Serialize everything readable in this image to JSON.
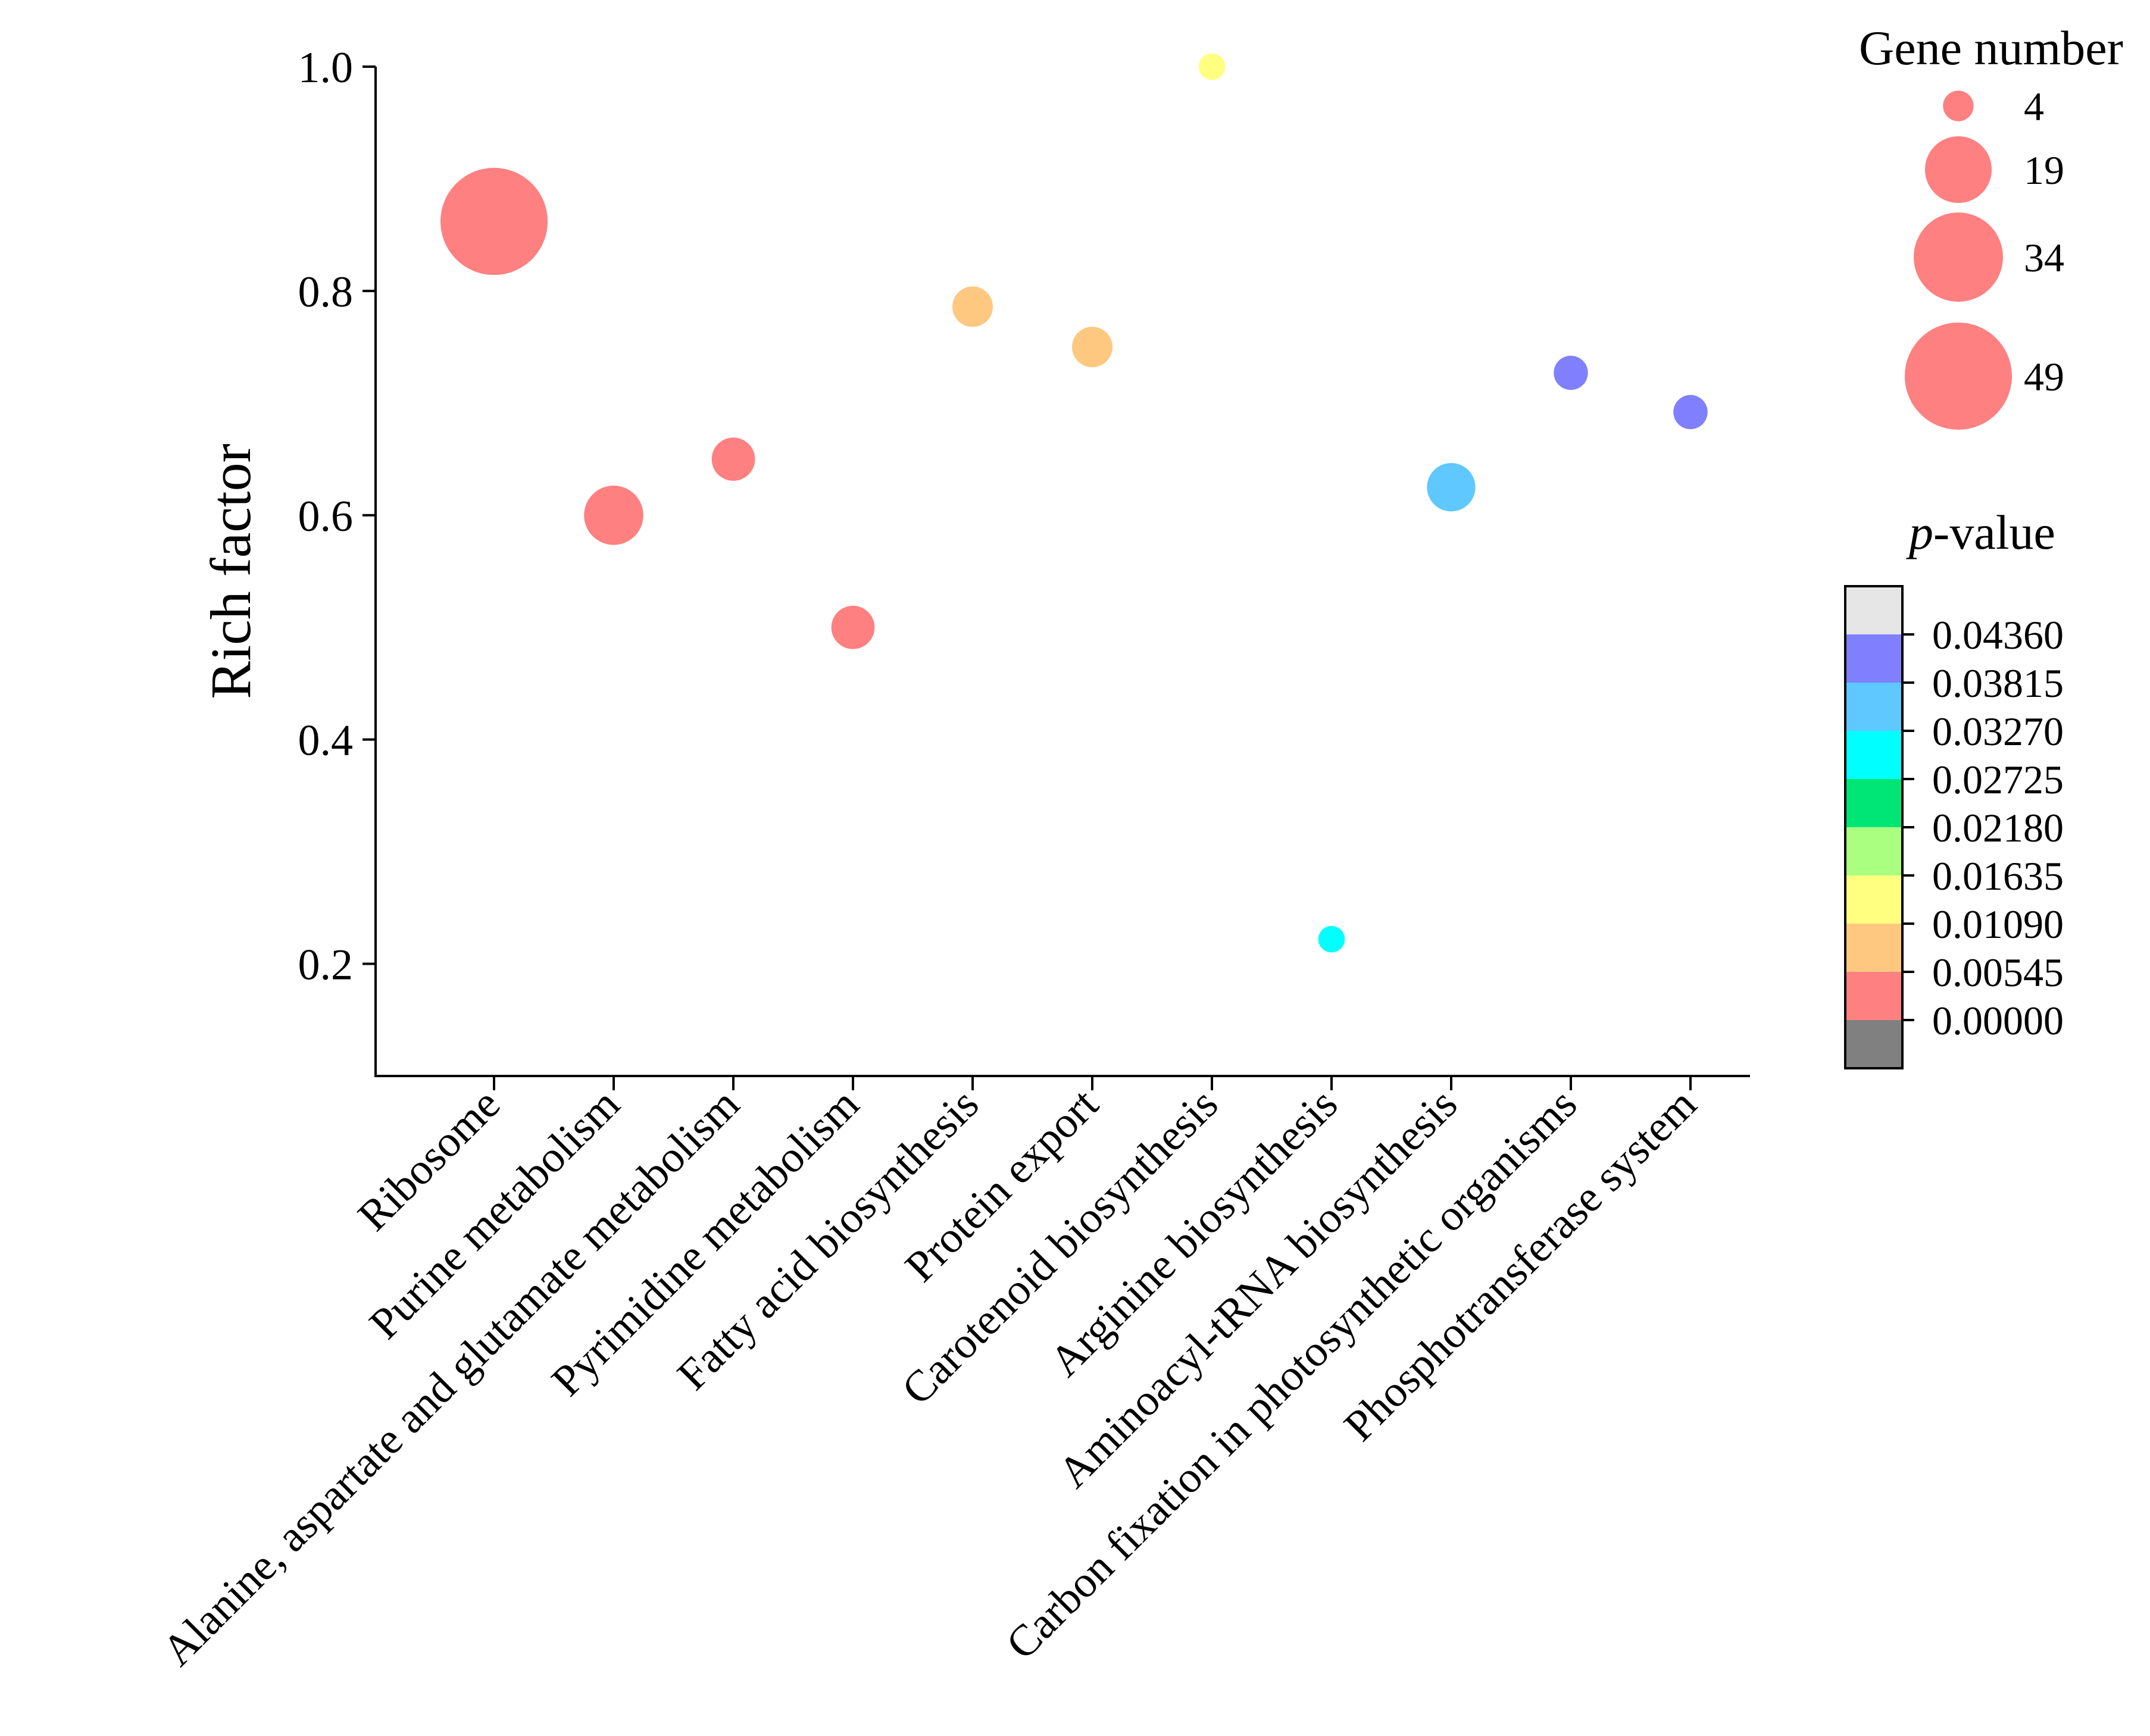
{
  "chart_data": {
    "type": "scatter",
    "title": "",
    "xlabel": "",
    "ylabel": "Rich factor",
    "ylim": [
      0.1,
      1.0
    ],
    "yticks": [
      0.2,
      0.4,
      0.6,
      0.8,
      1.0
    ],
    "yticks_text": [
      "0.2",
      "0.4",
      "0.6",
      "0.8",
      "1.0"
    ],
    "categories": [
      "Ribosome",
      "Purine metabolism",
      "Alanine, aspartate and glutamate metabolism",
      "Pyrimidine metabolism",
      "Fatty acid biosynthesis",
      "Protein export",
      "Carotenoid biosynthesis",
      "Arginine biosynthesis",
      "Aminoacyl-tRNA biosynthesis",
      "Carbon fixation in photosynthetic organisms",
      "Phosphotransferase system"
    ],
    "points": [
      {
        "category": "Ribosome",
        "rich_factor": 0.862,
        "gene_number": 49,
        "p_value": 0.002
      },
      {
        "category": "Purine metabolism",
        "rich_factor": 0.6,
        "gene_number": 15,
        "p_value": 0.003
      },
      {
        "category": "Alanine, aspartate and glutamate metabolism",
        "rich_factor": 0.65,
        "gene_number": 8,
        "p_value": 0.004
      },
      {
        "category": "Pyrimidine metabolism",
        "rich_factor": 0.5,
        "gene_number": 8,
        "p_value": 0.004
      },
      {
        "category": "Fatty acid biosynthesis",
        "rich_factor": 0.786,
        "gene_number": 7,
        "p_value": 0.007
      },
      {
        "category": "Protein export",
        "rich_factor": 0.75,
        "gene_number": 7,
        "p_value": 0.008
      },
      {
        "category": "Carotenoid biosynthesis",
        "rich_factor": 1.0,
        "gene_number": 3,
        "p_value": 0.012
      },
      {
        "category": "Arginine biosynthesis",
        "rich_factor": 0.222,
        "gene_number": 3,
        "p_value": 0.03
      },
      {
        "category": "Aminoacyl-tRNA biosynthesis",
        "rich_factor": 0.625,
        "gene_number": 10,
        "p_value": 0.035
      },
      {
        "category": "Carbon fixation in photosynthetic organisms",
        "rich_factor": 0.727,
        "gene_number": 5,
        "p_value": 0.04
      },
      {
        "category": "Phosphotransferase system",
        "rich_factor": 0.692,
        "gene_number": 5,
        "p_value": 0.04
      }
    ],
    "size_legend": {
      "title": "Gene number",
      "values": [
        4,
        19,
        34,
        49
      ],
      "labels": [
        "4",
        "19",
        "34",
        "49"
      ]
    },
    "color_legend": {
      "title_italic": "p",
      "title_rest": "-value",
      "ticks": [
        0.0,
        0.00545,
        0.0109,
        0.01635,
        0.0218,
        0.02725,
        0.0327,
        0.03815,
        0.0436
      ],
      "tick_labels": [
        "0.00000",
        "0.00545",
        "0.01090",
        "0.01635",
        "0.02180",
        "0.02725",
        "0.03270",
        "0.03815",
        "0.04360"
      ],
      "bins": [
        {
          "low": -0.00545,
          "high": 0.0,
          "color": "#808080"
        },
        {
          "low": 0.0,
          "high": 0.00545,
          "color": "#ff8080"
        },
        {
          "low": 0.00545,
          "high": 0.0109,
          "color": "#ffc880"
        },
        {
          "low": 0.0109,
          "high": 0.01635,
          "color": "#ffff80"
        },
        {
          "low": 0.01635,
          "high": 0.0218,
          "color": "#aaff80"
        },
        {
          "low": 0.0218,
          "high": 0.02725,
          "color": "#00e676"
        },
        {
          "low": 0.02725,
          "high": 0.0327,
          "color": "#00ffff"
        },
        {
          "low": 0.0327,
          "high": 0.03815,
          "color": "#5ec8ff"
        },
        {
          "low": 0.03815,
          "high": 0.0436,
          "color": "#8080ff"
        },
        {
          "low": 0.0436,
          "high": 0.04905,
          "color": "#e6e6e6"
        }
      ]
    }
  }
}
